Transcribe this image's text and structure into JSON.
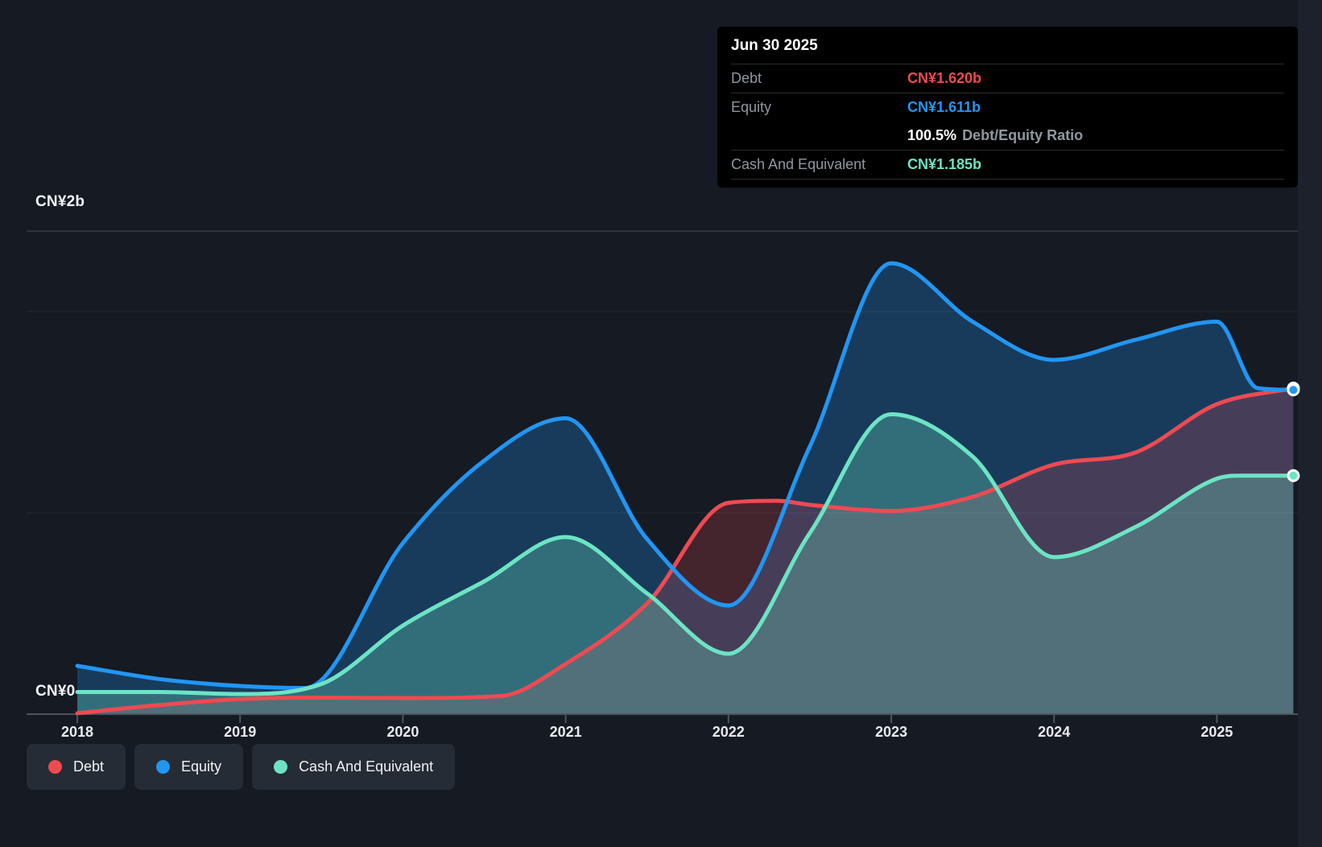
{
  "colors": {
    "debt": "#ee4a52",
    "equity": "#2196f3",
    "cash": "#6ce4c4",
    "background": "#151a23",
    "axis_line": "#4d545e",
    "grid_faint": "rgba(255,255,255,0.07)",
    "grid_top": "rgba(255,255,255,0.15)"
  },
  "tooltip": {
    "date": "Jun 30 2025",
    "rows": [
      {
        "label": "Debt",
        "value": "CN¥1.620b",
        "series": "debt"
      },
      {
        "label": "Equity",
        "value": "CN¥1.611b",
        "series": "equity"
      },
      {
        "label": "Cash And Equivalent",
        "value": "CN¥1.185b",
        "series": "cash"
      }
    ],
    "ratio_value": "100.5%",
    "ratio_label": "Debt/Equity Ratio"
  },
  "legend": {
    "items": [
      {
        "label": "Debt",
        "series": "debt"
      },
      {
        "label": "Equity",
        "series": "equity"
      },
      {
        "label": "Cash And Equivalent",
        "series": "cash"
      }
    ]
  },
  "chart_data": {
    "type": "area",
    "title": "Debt to Equity history",
    "unit": "CN¥ billions",
    "y_axis": {
      "top_label": "CN¥2b",
      "zero_label": "CN¥0",
      "ylim": [
        0,
        2.4
      ],
      "gridline_values": [
        2,
        1
      ]
    },
    "x_axis": {
      "years": [
        2018,
        2019,
        2020,
        2021,
        2022,
        2023,
        2024,
        2025
      ],
      "x_end": 2025.47
    },
    "series": [
      {
        "name": "Debt",
        "key": "debt",
        "end_value": 1.62,
        "points": [
          [
            2018.0,
            0.005
          ],
          [
            2018.5,
            0.045
          ],
          [
            2019.0,
            0.075
          ],
          [
            2019.5,
            0.082
          ],
          [
            2020.0,
            0.08
          ],
          [
            2020.6,
            0.09
          ],
          [
            2021.0,
            0.25
          ],
          [
            2021.5,
            0.55
          ],
          [
            2022.0,
            1.05
          ],
          [
            2022.3,
            1.06
          ],
          [
            2022.5,
            1.04
          ],
          [
            2023.0,
            1.01
          ],
          [
            2023.5,
            1.08
          ],
          [
            2024.0,
            1.24
          ],
          [
            2024.5,
            1.3
          ],
          [
            2025.0,
            1.54
          ],
          [
            2025.47,
            1.62
          ]
        ]
      },
      {
        "name": "Equity",
        "key": "equity",
        "end_value": 1.611,
        "points": [
          [
            2018.0,
            0.24
          ],
          [
            2018.5,
            0.175
          ],
          [
            2019.0,
            0.14
          ],
          [
            2019.4,
            0.13
          ],
          [
            2020.0,
            0.85
          ],
          [
            2020.5,
            1.26
          ],
          [
            2021.0,
            1.47
          ],
          [
            2021.5,
            0.87
          ],
          [
            2022.0,
            0.54
          ],
          [
            2022.5,
            1.33
          ],
          [
            2023.0,
            2.24
          ],
          [
            2023.5,
            1.95
          ],
          [
            2024.0,
            1.76
          ],
          [
            2024.5,
            1.86
          ],
          [
            2025.0,
            1.95
          ],
          [
            2025.25,
            1.62
          ],
          [
            2025.47,
            1.611
          ]
        ]
      },
      {
        "name": "Cash And Equivalent",
        "key": "cash",
        "end_value": 1.185,
        "points": [
          [
            2018.0,
            0.11
          ],
          [
            2018.5,
            0.11
          ],
          [
            2019.0,
            0.1
          ],
          [
            2019.5,
            0.15
          ],
          [
            2020.0,
            0.44
          ],
          [
            2020.5,
            0.66
          ],
          [
            2021.0,
            0.88
          ],
          [
            2021.5,
            0.6
          ],
          [
            2022.0,
            0.3
          ],
          [
            2022.5,
            0.9
          ],
          [
            2023.0,
            1.49
          ],
          [
            2023.5,
            1.28
          ],
          [
            2024.0,
            0.78
          ],
          [
            2024.5,
            0.93
          ],
          [
            2025.0,
            1.17
          ],
          [
            2025.15,
            1.185
          ],
          [
            2025.47,
            1.185
          ]
        ]
      }
    ]
  }
}
